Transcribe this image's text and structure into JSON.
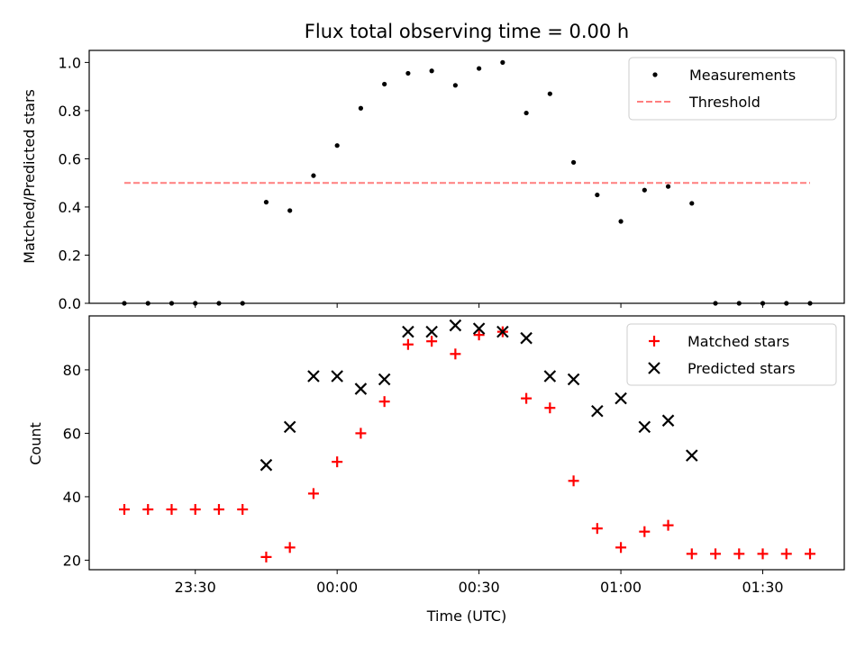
{
  "chart_data": [
    {
      "type": "scatter",
      "title": "Flux total observing time = 0.00 h",
      "xlabel": "",
      "ylabel": "Matched/Predicted stars",
      "ylim": [
        0,
        1.05
      ],
      "yticks": [
        "0.0",
        "0.2",
        "0.4",
        "0.6",
        "0.8",
        "1.0"
      ],
      "legend_position": "top-right",
      "legend": [
        "Measurements",
        "Threshold"
      ],
      "colors": {
        "measurements": "#000000",
        "threshold": "#ff7f7f"
      },
      "threshold": {
        "name": "Threshold",
        "value": 0.5,
        "x_range": [
          "23:15",
          "01:40"
        ],
        "style": "dashed"
      },
      "series": [
        {
          "name": "Measurements",
          "x": [
            "23:15",
            "23:20",
            "23:25",
            "23:30",
            "23:35",
            "23:40",
            "23:45",
            "23:50",
            "23:55",
            "00:00",
            "00:05",
            "00:10",
            "00:15",
            "00:20",
            "00:25",
            "00:30",
            "00:35",
            "00:40",
            "00:45",
            "00:50",
            "00:55",
            "01:00",
            "01:05",
            "01:10",
            "01:15",
            "01:20",
            "01:25",
            "01:30",
            "01:35",
            "01:40"
          ],
          "values": [
            0.0,
            0.0,
            0.0,
            0.0,
            0.0,
            0.0,
            0.42,
            0.385,
            0.53,
            0.655,
            0.81,
            0.91,
            0.955,
            0.965,
            0.905,
            0.975,
            1.0,
            0.79,
            0.87,
            0.585,
            0.45,
            0.34,
            0.47,
            0.485,
            0.415,
            0.0,
            0.0,
            0.0,
            0.0,
            0.0
          ]
        }
      ]
    },
    {
      "type": "scatter",
      "xlabel": "Time (UTC)",
      "ylabel": "Count",
      "ylim": [
        17,
        97
      ],
      "yticks": [
        "20",
        "40",
        "60",
        "80"
      ],
      "xticks": [
        "23:30",
        "00:00",
        "00:30",
        "01:00",
        "01:30"
      ],
      "legend_position": "top-right",
      "legend": [
        "Matched stars",
        "Predicted stars"
      ],
      "colors": {
        "matched": "#ff0000",
        "predicted": "#000000"
      },
      "series": [
        {
          "name": "Matched stars",
          "marker": "+",
          "x": [
            "23:15",
            "23:20",
            "23:25",
            "23:30",
            "23:35",
            "23:40",
            "23:45",
            "23:50",
            "23:55",
            "00:00",
            "00:05",
            "00:10",
            "00:15",
            "00:20",
            "00:25",
            "00:30",
            "00:35",
            "00:40",
            "00:45",
            "00:50",
            "00:55",
            "01:00",
            "01:05",
            "01:10",
            "01:15",
            "01:20",
            "01:25",
            "01:30",
            "01:35",
            "01:40"
          ],
          "values": [
            36,
            36,
            36,
            36,
            36,
            36,
            21,
            24,
            41,
            51,
            60,
            70,
            88,
            89,
            85,
            91,
            92,
            71,
            68,
            45,
            30,
            24,
            29,
            31,
            22,
            22,
            22,
            22,
            22,
            22
          ]
        },
        {
          "name": "Predicted stars",
          "marker": "x",
          "x": [
            "23:45",
            "23:50",
            "23:55",
            "00:00",
            "00:05",
            "00:10",
            "00:15",
            "00:20",
            "00:25",
            "00:30",
            "00:35",
            "00:40",
            "00:45",
            "00:50",
            "00:55",
            "01:00",
            "01:05",
            "01:10",
            "01:15"
          ],
          "values": [
            50,
            62,
            78,
            78,
            74,
            77,
            92,
            92,
            94,
            93,
            92,
            90,
            78,
            77,
            67,
            71,
            62,
            64,
            53
          ]
        }
      ]
    }
  ]
}
